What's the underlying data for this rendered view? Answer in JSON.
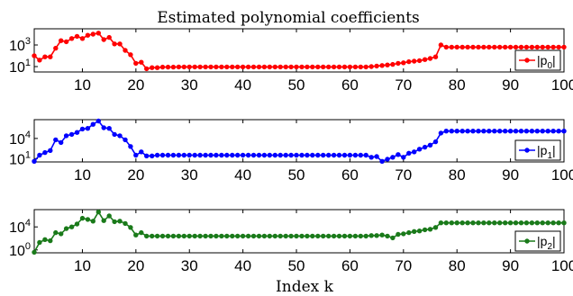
{
  "figure": {
    "title": "Estimated polynomial coefficients",
    "xlabel": "Index k"
  },
  "chart_data": [
    {
      "type": "line",
      "title": "Estimated polynomial coefficients",
      "xlabel": "",
      "ylabel": "",
      "yscale": "log",
      "xlim": [
        1,
        100
      ],
      "ylim_exp": [
        0.5,
        4.5
      ],
      "xticks": [
        10,
        20,
        30,
        40,
        50,
        60,
        70,
        80,
        90,
        100
      ],
      "xtick_labels": [
        "10",
        "20",
        "30",
        "40",
        "50",
        "60",
        "70",
        "80",
        "90",
        "100"
      ],
      "yticks_exp": [
        1,
        3
      ],
      "ytick_labels": [
        {
          "base": "10",
          "exp": "1"
        },
        {
          "base": "10",
          "exp": "3"
        }
      ],
      "legend": {
        "label": "|p",
        "sub": "0",
        "tail": "|",
        "placement": "right"
      },
      "grid": false,
      "color": "#ff0000",
      "series": [
        {
          "x_start": 1,
          "x_step": 1,
          "log10_values": [
            2.0,
            1.6,
            1.9,
            1.9,
            2.7,
            3.4,
            3.3,
            3.6,
            3.8,
            3.6,
            3.9,
            4.0,
            4.1,
            3.5,
            3.7,
            3.1,
            3.1,
            2.5,
            2.1,
            1.3,
            1.4,
            0.8,
            0.9,
            0.9,
            0.95,
            0.95,
            0.95,
            0.97,
            0.97,
            0.97,
            0.97,
            0.97,
            0.97,
            0.97,
            0.97,
            0.97,
            0.97,
            0.97,
            0.97,
            0.97,
            0.97,
            0.97,
            0.97,
            0.97,
            0.97,
            0.97,
            0.97,
            0.97,
            0.97,
            0.97,
            0.97,
            0.97,
            0.97,
            0.97,
            0.97,
            0.97,
            0.97,
            0.97,
            0.97,
            0.97,
            0.97,
            0.97,
            0.97,
            1.0,
            1.05,
            1.1,
            1.15,
            1.2,
            1.3,
            1.35,
            1.45,
            1.5,
            1.55,
            1.65,
            1.75,
            1.9,
            3.0,
            2.8,
            2.8,
            2.8,
            2.8,
            2.8,
            2.8,
            2.8,
            2.8,
            2.8,
            2.8,
            2.8,
            2.8,
            2.8,
            2.8,
            2.8,
            2.8,
            2.8,
            2.8,
            2.8,
            2.8,
            2.8,
            2.8,
            2.8
          ]
        }
      ]
    },
    {
      "type": "line",
      "title": "",
      "xlabel": "",
      "ylabel": "",
      "yscale": "log",
      "xlim": [
        1,
        100
      ],
      "ylim_exp": [
        0.5,
        6.8
      ],
      "xticks": [
        10,
        20,
        30,
        40,
        50,
        60,
        70,
        80,
        90,
        100
      ],
      "xtick_labels": [
        "10",
        "20",
        "30",
        "40",
        "50",
        "60",
        "70",
        "80",
        "90",
        "100"
      ],
      "yticks_exp": [
        1,
        4
      ],
      "ytick_labels": [
        {
          "base": "10",
          "exp": "1"
        },
        {
          "base": "10",
          "exp": "4"
        }
      ],
      "legend": {
        "label": "|p",
        "sub": "1",
        "tail": "|",
        "placement": "right"
      },
      "grid": false,
      "color": "#0000ff",
      "series": [
        {
          "x_start": 1,
          "x_step": 1,
          "log10_values": [
            0.6,
            1.5,
            1.9,
            2.2,
            3.8,
            3.4,
            4.4,
            4.6,
            4.9,
            5.4,
            5.5,
            6.1,
            6.6,
            5.6,
            5.5,
            4.6,
            4.4,
            3.8,
            2.8,
            1.5,
            2.0,
            1.4,
            1.4,
            1.5,
            1.5,
            1.5,
            1.5,
            1.5,
            1.5,
            1.5,
            1.5,
            1.5,
            1.5,
            1.5,
            1.5,
            1.5,
            1.5,
            1.5,
            1.5,
            1.5,
            1.5,
            1.5,
            1.5,
            1.5,
            1.5,
            1.5,
            1.5,
            1.5,
            1.5,
            1.5,
            1.5,
            1.5,
            1.5,
            1.5,
            1.5,
            1.5,
            1.5,
            1.5,
            1.5,
            1.5,
            1.5,
            1.5,
            1.5,
            1.2,
            1.3,
            0.6,
            0.9,
            1.2,
            1.6,
            1.2,
            1.8,
            2.0,
            2.4,
            2.7,
            3.0,
            3.5,
            4.8,
            5.1,
            5.1,
            5.1,
            5.1,
            5.1,
            5.1,
            5.1,
            5.1,
            5.1,
            5.1,
            5.1,
            5.1,
            5.1,
            5.1,
            5.1,
            5.1,
            5.1,
            5.1,
            5.1,
            5.1,
            5.1,
            5.1,
            5.1
          ]
        }
      ]
    },
    {
      "type": "line",
      "title": "",
      "xlabel": "",
      "ylabel": "",
      "yscale": "log",
      "xlim": [
        1,
        100
      ],
      "ylim_exp": [
        -0.5,
        7.0
      ],
      "xticks": [
        10,
        20,
        30,
        40,
        50,
        60,
        70,
        80,
        90,
        100
      ],
      "xtick_labels": [
        "10",
        "20",
        "30",
        "40",
        "50",
        "60",
        "70",
        "80",
        "90",
        "100"
      ],
      "yticks_exp": [
        0,
        4
      ],
      "ytick_labels": [
        {
          "base": "10",
          "exp": "0"
        },
        {
          "base": "10",
          "exp": "4"
        }
      ],
      "legend": {
        "label": "|p",
        "sub": "2",
        "tail": "|",
        "placement": "right"
      },
      "grid": false,
      "color": "#1a7a1a",
      "series": [
        {
          "x_start": 1,
          "x_step": 1,
          "log10_values": [
            -0.4,
            1.3,
            1.8,
            1.6,
            3.0,
            2.8,
            3.7,
            4.0,
            4.5,
            5.5,
            5.3,
            5.0,
            6.6,
            5.1,
            5.9,
            4.9,
            5.0,
            4.6,
            3.9,
            2.6,
            3.0,
            2.4,
            2.4,
            2.4,
            2.4,
            2.4,
            2.4,
            2.4,
            2.4,
            2.4,
            2.4,
            2.4,
            2.4,
            2.4,
            2.4,
            2.4,
            2.4,
            2.4,
            2.4,
            2.4,
            2.4,
            2.4,
            2.4,
            2.4,
            2.4,
            2.4,
            2.4,
            2.4,
            2.4,
            2.4,
            2.4,
            2.4,
            2.4,
            2.4,
            2.4,
            2.4,
            2.4,
            2.4,
            2.4,
            2.4,
            2.4,
            2.4,
            2.4,
            2.5,
            2.5,
            2.6,
            2.4,
            2.1,
            2.7,
            2.8,
            3.0,
            3.2,
            3.3,
            3.5,
            3.6,
            3.9,
            4.7,
            4.7,
            4.7,
            4.7,
            4.7,
            4.7,
            4.7,
            4.7,
            4.7,
            4.7,
            4.7,
            4.7,
            4.7,
            4.7,
            4.7,
            4.7,
            4.7,
            4.7,
            4.7,
            4.7,
            4.7,
            4.7,
            4.7,
            4.7
          ]
        }
      ]
    }
  ]
}
